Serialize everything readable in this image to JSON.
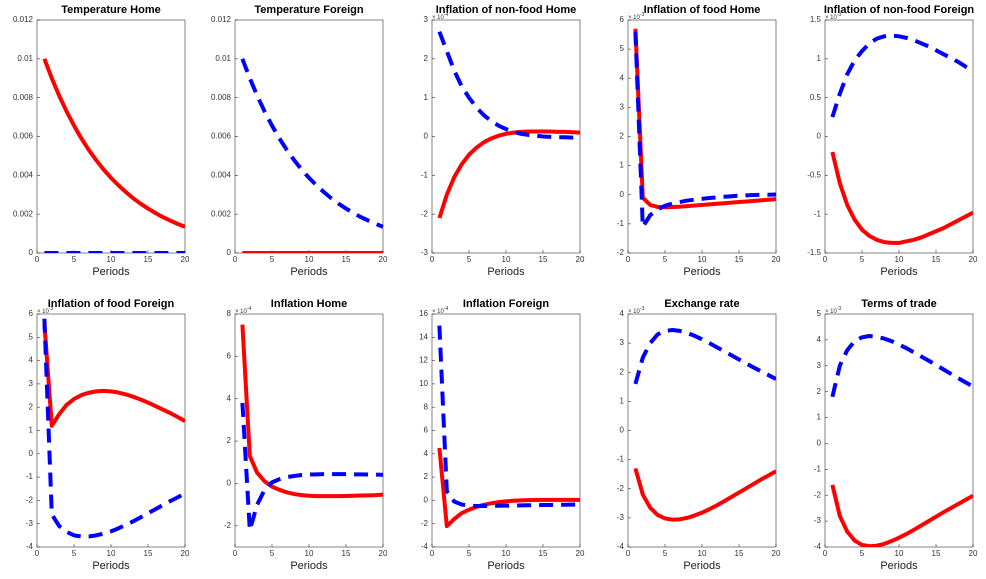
{
  "chart_data": [
    {
      "type": "line",
      "title": "Temperature Home",
      "xlabel": "Periods",
      "x": [
        1,
        2,
        3,
        4,
        5,
        6,
        7,
        8,
        9,
        10,
        11,
        12,
        13,
        14,
        15,
        16,
        17,
        18,
        19,
        20
      ],
      "xlim": [
        0,
        20
      ],
      "xticks": [
        0,
        5,
        10,
        15,
        20
      ],
      "ylim": [
        0,
        0.012
      ],
      "yticks": [
        0,
        0.002,
        0.004,
        0.006,
        0.008,
        0.01,
        0.012
      ],
      "series": [
        {
          "color": "#ff0000",
          "line_style": "solid",
          "values": [
            0.01,
            0.009,
            0.0081,
            0.00729,
            0.00656,
            0.0059,
            0.00531,
            0.00478,
            0.0043,
            0.00387,
            0.00349,
            0.00314,
            0.00282,
            0.00254,
            0.00229,
            0.00206,
            0.00185,
            0.00167,
            0.0015,
            0.00135
          ]
        },
        {
          "color": "#0000ff",
          "line_style": "dashed",
          "values": [
            0,
            0,
            0,
            0,
            0,
            0,
            0,
            0,
            0,
            0,
            0,
            0,
            0,
            0,
            0,
            0,
            0,
            0,
            0,
            0
          ]
        }
      ]
    },
    {
      "type": "line",
      "title": "Temperature Foreign",
      "xlabel": "Periods",
      "x": [
        1,
        2,
        3,
        4,
        5,
        6,
        7,
        8,
        9,
        10,
        11,
        12,
        13,
        14,
        15,
        16,
        17,
        18,
        19,
        20
      ],
      "xlim": [
        0,
        20
      ],
      "xticks": [
        0,
        5,
        10,
        15,
        20
      ],
      "ylim": [
        0,
        0.012
      ],
      "yticks": [
        0,
        0.002,
        0.004,
        0.006,
        0.008,
        0.01,
        0.012
      ],
      "series": [
        {
          "color": "#ff0000",
          "line_style": "solid",
          "values": [
            0,
            0,
            0,
            0,
            0,
            0,
            0,
            0,
            0,
            0,
            0,
            0,
            0,
            0,
            0,
            0,
            0,
            0,
            0,
            0
          ]
        },
        {
          "color": "#0000ff",
          "line_style": "dashed",
          "values": [
            0.01,
            0.009,
            0.0081,
            0.00729,
            0.00656,
            0.0059,
            0.00531,
            0.00478,
            0.0043,
            0.00387,
            0.00349,
            0.00314,
            0.00282,
            0.00254,
            0.00229,
            0.00206,
            0.00185,
            0.00167,
            0.0015,
            0.00135
          ]
        }
      ]
    },
    {
      "type": "line",
      "title": "Inflation of non-food Home",
      "xlabel": "Periods",
      "y_multiplier": "× 10",
      "y_exponent": "-4",
      "x": [
        1,
        2,
        3,
        4,
        5,
        6,
        7,
        8,
        9,
        10,
        11,
        12,
        13,
        14,
        15,
        16,
        17,
        18,
        19,
        20
      ],
      "xlim": [
        0,
        20
      ],
      "xticks": [
        0,
        5,
        10,
        15,
        20
      ],
      "ylim": [
        -3,
        3
      ],
      "yticks": [
        -3,
        -2,
        -1,
        0,
        1,
        2,
        3
      ],
      "series": [
        {
          "color": "#ff0000",
          "line_style": "solid",
          "values": [
            -2.1,
            -1.5,
            -1.05,
            -0.72,
            -0.47,
            -0.29,
            -0.15,
            -0.05,
            0.02,
            0.07,
            0.1,
            0.12,
            0.13,
            0.13,
            0.13,
            0.13,
            0.12,
            0.12,
            0.11,
            0.1
          ]
        },
        {
          "color": "#0000ff",
          "line_style": "dashed",
          "values": [
            2.7,
            2.2,
            1.7,
            1.3,
            1.0,
            0.75,
            0.55,
            0.4,
            0.28,
            0.19,
            0.12,
            0.07,
            0.04,
            0.02,
            0.0,
            -0.01,
            -0.02,
            -0.02,
            -0.03,
            -0.03
          ]
        }
      ]
    },
    {
      "type": "line",
      "title": "Inflation of food Home",
      "xlabel": "Periods",
      "y_multiplier": "× 10",
      "y_exponent": "-3",
      "x": [
        1,
        2,
        3,
        4,
        5,
        6,
        7,
        8,
        9,
        10,
        11,
        12,
        13,
        14,
        15,
        16,
        17,
        18,
        19,
        20
      ],
      "xlim": [
        0,
        20
      ],
      "xticks": [
        0,
        5,
        10,
        15,
        20
      ],
      "ylim": [
        -2,
        6
      ],
      "yticks": [
        -2,
        -1,
        0,
        1,
        2,
        3,
        4,
        5,
        6
      ],
      "series": [
        {
          "color": "#ff0000",
          "line_style": "solid",
          "values": [
            5.7,
            -0.1,
            -0.35,
            -0.42,
            -0.43,
            -0.42,
            -0.41,
            -0.39,
            -0.37,
            -0.35,
            -0.33,
            -0.31,
            -0.29,
            -0.27,
            -0.25,
            -0.23,
            -0.21,
            -0.19,
            -0.17,
            -0.15
          ]
        },
        {
          "color": "#0000ff",
          "line_style": "dashed",
          "values": [
            5.6,
            -1.1,
            -0.7,
            -0.5,
            -0.38,
            -0.3,
            -0.25,
            -0.2,
            -0.17,
            -0.14,
            -0.11,
            -0.09,
            -0.07,
            -0.05,
            -0.03,
            -0.02,
            -0.01,
            0.0,
            0.0,
            0.01
          ]
        }
      ]
    },
    {
      "type": "line",
      "title": "Inflation of non-food Foreign",
      "xlabel": "Periods",
      "y_multiplier": "× 10",
      "y_exponent": "-3",
      "x": [
        1,
        2,
        3,
        4,
        5,
        6,
        7,
        8,
        9,
        10,
        11,
        12,
        13,
        14,
        15,
        16,
        17,
        18,
        19,
        20
      ],
      "xlim": [
        0,
        20
      ],
      "xticks": [
        0,
        5,
        10,
        15,
        20
      ],
      "ylim": [
        -1.5,
        1.5
      ],
      "yticks": [
        -1.5,
        -1,
        -0.5,
        0,
        0.5,
        1,
        1.5
      ],
      "series": [
        {
          "color": "#ff0000",
          "line_style": "solid",
          "values": [
            -0.2,
            -0.6,
            -0.88,
            -1.07,
            -1.2,
            -1.28,
            -1.33,
            -1.36,
            -1.37,
            -1.37,
            -1.35,
            -1.33,
            -1.3,
            -1.26,
            -1.22,
            -1.18,
            -1.13,
            -1.08,
            -1.03,
            -0.98
          ]
        },
        {
          "color": "#0000ff",
          "line_style": "dashed",
          "values": [
            0.25,
            0.55,
            0.8,
            0.98,
            1.1,
            1.2,
            1.26,
            1.29,
            1.3,
            1.29,
            1.27,
            1.24,
            1.2,
            1.16,
            1.11,
            1.06,
            1.01,
            0.96,
            0.9,
            0.85
          ]
        }
      ]
    },
    {
      "type": "line",
      "title": "Inflation of food Foreign",
      "xlabel": "Periods",
      "y_multiplier": "× 10",
      "y_exponent": "-3",
      "x": [
        1,
        2,
        3,
        4,
        5,
        6,
        7,
        8,
        9,
        10,
        11,
        12,
        13,
        14,
        15,
        16,
        17,
        18,
        19,
        20
      ],
      "xlim": [
        0,
        20
      ],
      "xticks": [
        0,
        5,
        10,
        15,
        20
      ],
      "ylim": [
        -4,
        6
      ],
      "yticks": [
        -4,
        -3,
        -2,
        -1,
        0,
        1,
        2,
        3,
        4,
        5,
        6
      ],
      "series": [
        {
          "color": "#ff0000",
          "line_style": "solid",
          "values": [
            5.6,
            1.2,
            1.7,
            2.1,
            2.35,
            2.52,
            2.62,
            2.68,
            2.7,
            2.68,
            2.63,
            2.55,
            2.45,
            2.33,
            2.2,
            2.05,
            1.9,
            1.75,
            1.58,
            1.4
          ]
        },
        {
          "color": "#0000ff",
          "line_style": "dashed",
          "values": [
            5.8,
            -2.6,
            -3.1,
            -3.35,
            -3.5,
            -3.55,
            -3.55,
            -3.5,
            -3.43,
            -3.33,
            -3.2,
            -3.05,
            -2.9,
            -2.73,
            -2.55,
            -2.38,
            -2.2,
            -2.03,
            -1.87,
            -1.7
          ]
        }
      ]
    },
    {
      "type": "line",
      "title": "Inflation Home",
      "xlabel": "Periods",
      "y_multiplier": "× 10",
      "y_exponent": "-4",
      "x": [
        1,
        2,
        3,
        4,
        5,
        6,
        7,
        8,
        9,
        10,
        11,
        12,
        13,
        14,
        15,
        16,
        17,
        18,
        19,
        20
      ],
      "xlim": [
        0,
        20
      ],
      "xticks": [
        0,
        5,
        10,
        15,
        20
      ],
      "ylim": [
        -3,
        8
      ],
      "yticks": [
        -2,
        0,
        2,
        4,
        6,
        8
      ],
      "series": [
        {
          "color": "#ff0000",
          "line_style": "solid",
          "values": [
            7.5,
            1.3,
            0.5,
            0.1,
            -0.15,
            -0.3,
            -0.42,
            -0.5,
            -0.55,
            -0.58,
            -0.6,
            -0.6,
            -0.6,
            -0.6,
            -0.59,
            -0.58,
            -0.57,
            -0.56,
            -0.55,
            -0.53
          ]
        },
        {
          "color": "#0000ff",
          "line_style": "dashed",
          "values": [
            3.8,
            -2.2,
            -1.0,
            -0.3,
            0.05,
            0.2,
            0.3,
            0.35,
            0.4,
            0.42,
            0.43,
            0.44,
            0.44,
            0.44,
            0.44,
            0.43,
            0.43,
            0.42,
            0.42,
            0.41
          ]
        }
      ]
    },
    {
      "type": "line",
      "title": "Inflation Foreign",
      "xlabel": "Periods",
      "y_multiplier": "× 10",
      "y_exponent": "-4",
      "x": [
        1,
        2,
        3,
        4,
        5,
        6,
        7,
        8,
        9,
        10,
        11,
        12,
        13,
        14,
        15,
        16,
        17,
        18,
        19,
        20
      ],
      "xlim": [
        0,
        20
      ],
      "xticks": [
        0,
        5,
        10,
        15,
        20
      ],
      "ylim": [
        -4,
        16
      ],
      "yticks": [
        -4,
        -2,
        0,
        2,
        4,
        6,
        8,
        10,
        12,
        14,
        16
      ],
      "series": [
        {
          "color": "#ff0000",
          "line_style": "solid",
          "values": [
            4.5,
            -2.2,
            -1.6,
            -1.1,
            -0.8,
            -0.55,
            -0.38,
            -0.25,
            -0.15,
            -0.08,
            -0.03,
            0,
            0.02,
            0.03,
            0.04,
            0.04,
            0.04,
            0.04,
            0.04,
            0.04
          ]
        },
        {
          "color": "#0000ff",
          "line_style": "dashed",
          "values": [
            15,
            0.8,
            -0.1,
            -0.35,
            -0.45,
            -0.48,
            -0.48,
            -0.47,
            -0.46,
            -0.45,
            -0.44,
            -0.43,
            -0.42,
            -0.41,
            -0.4,
            -0.39,
            -0.38,
            -0.37,
            -0.36,
            -0.35
          ]
        }
      ]
    },
    {
      "type": "line",
      "title": "Exchange rate",
      "xlabel": "Periods",
      "y_multiplier": "× 10",
      "y_exponent": "-3",
      "x": [
        1,
        2,
        3,
        4,
        5,
        6,
        7,
        8,
        9,
        10,
        11,
        12,
        13,
        14,
        15,
        16,
        17,
        18,
        19,
        20
      ],
      "xlim": [
        0,
        20
      ],
      "xticks": [
        0,
        5,
        10,
        15,
        20
      ],
      "ylim": [
        -4,
        4
      ],
      "yticks": [
        -4,
        -3,
        -2,
        -1,
        0,
        1,
        2,
        3,
        4
      ],
      "series": [
        {
          "color": "#ff0000",
          "line_style": "solid",
          "values": [
            -1.3,
            -2.2,
            -2.65,
            -2.9,
            -3.02,
            -3.06,
            -3.05,
            -3.0,
            -2.92,
            -2.82,
            -2.7,
            -2.57,
            -2.43,
            -2.28,
            -2.13,
            -1.98,
            -1.83,
            -1.68,
            -1.54,
            -1.4
          ]
        },
        {
          "color": "#0000ff",
          "line_style": "dashed",
          "values": [
            1.6,
            2.5,
            3.0,
            3.3,
            3.42,
            3.45,
            3.42,
            3.35,
            3.25,
            3.13,
            3.0,
            2.86,
            2.72,
            2.58,
            2.44,
            2.3,
            2.16,
            2.03,
            1.9,
            1.77
          ]
        }
      ]
    },
    {
      "type": "line",
      "title": "Terms of trade",
      "xlabel": "Periods",
      "y_multiplier": "× 10",
      "y_exponent": "-3",
      "x": [
        1,
        2,
        3,
        4,
        5,
        6,
        7,
        8,
        9,
        10,
        11,
        12,
        13,
        14,
        15,
        16,
        17,
        18,
        19,
        20
      ],
      "xlim": [
        0,
        20
      ],
      "xticks": [
        0,
        5,
        10,
        15,
        20
      ],
      "ylim": [
        -4,
        5
      ],
      "yticks": [
        -4,
        -3,
        -2,
        -1,
        0,
        1,
        2,
        3,
        4,
        5
      ],
      "series": [
        {
          "color": "#ff0000",
          "line_style": "solid",
          "values": [
            -1.6,
            -2.8,
            -3.4,
            -3.75,
            -3.92,
            -3.97,
            -3.95,
            -3.88,
            -3.77,
            -3.64,
            -3.5,
            -3.34,
            -3.17,
            -3.0,
            -2.83,
            -2.66,
            -2.5,
            -2.34,
            -2.18,
            -2.02
          ]
        },
        {
          "color": "#0000ff",
          "line_style": "dashed",
          "values": [
            1.8,
            3.0,
            3.6,
            3.95,
            4.1,
            4.15,
            4.12,
            4.05,
            3.95,
            3.82,
            3.68,
            3.52,
            3.36,
            3.2,
            3.03,
            2.86,
            2.69,
            2.52,
            2.36,
            2.2
          ]
        }
      ]
    }
  ]
}
